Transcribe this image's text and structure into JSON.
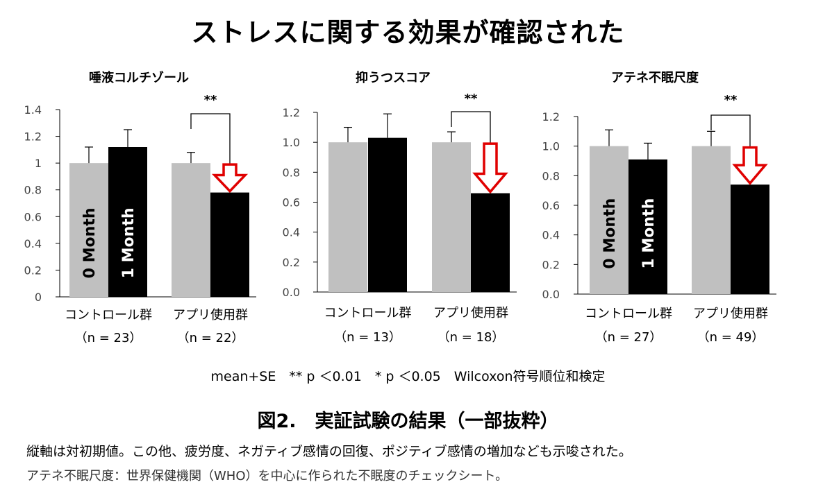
{
  "page": {
    "title": "ストレスに関する効果が確認された",
    "footnote": "mean+SE　** p ＜0.01　* p ＜0.05　Wilcoxon符号順位和検定",
    "figure_caption": "図2.　実証試験の結果（一部抜粋）",
    "description_line1": "縦軸は対初期値。この他、疲労度、ネガティブ感情の回復、ポジティブ感情の増加なども示唆された。",
    "description_line2": "アテネ不眠尺度：世界保健機関（WHO）を中心に作られた不眠度のチェックシート。"
  },
  "colors": {
    "month0": "#c0c0c0",
    "month1": "#000000",
    "arrow": "#e00000"
  },
  "chart_data": [
    {
      "type": "bar",
      "title": "唾液コルチゾール",
      "ylim": [
        0,
        1.4
      ],
      "yticks": [
        "0",
        "0.2",
        "0.4",
        "0.6",
        "0.8",
        "1",
        "1.2",
        "1.4"
      ],
      "groups": [
        {
          "label": "コントロール群",
          "n": "（n = 23）",
          "values": [
            1.0,
            1.12
          ],
          "se": [
            0.12,
            0.13
          ]
        },
        {
          "label": "アプリ使用群",
          "n": "（n = 22）",
          "values": [
            1.0,
            0.78
          ],
          "se": [
            0.08,
            0.09
          ]
        }
      ],
      "series": [
        {
          "name": "0 Month"
        },
        {
          "name": "1 Month"
        }
      ],
      "significance": "**"
    },
    {
      "type": "bar",
      "title": "抑うつスコア",
      "ylim": [
        0,
        1.2
      ],
      "yticks": [
        "0.0",
        "0.2",
        "0.4",
        "0.6",
        "0.8",
        "1.0",
        "1.2"
      ],
      "groups": [
        {
          "label": "コントロール群",
          "n": "（n = 13）",
          "values": [
            1.0,
            1.03
          ],
          "se": [
            0.1,
            0.16
          ]
        },
        {
          "label": "アプリ使用群",
          "n": "（n = 18）",
          "values": [
            1.0,
            0.66
          ],
          "se": [
            0.07,
            0.19
          ]
        }
      ],
      "significance": "**"
    },
    {
      "type": "bar",
      "title": "アテネ不眠尺度",
      "ylim": [
        0,
        1.2
      ],
      "yticks": [
        "0.0",
        "0.2",
        "0.4",
        "0.6",
        "0.8",
        "1.0",
        "1.2"
      ],
      "groups": [
        {
          "label": "コントロール群",
          "n": "（n = 27）",
          "values": [
            1.0,
            0.91
          ],
          "se": [
            0.11,
            0.11
          ]
        },
        {
          "label": "アプリ使用群",
          "n": "（n = 49）",
          "values": [
            1.0,
            0.74
          ],
          "se": [
            0.1,
            0.11
          ]
        }
      ],
      "series": [
        {
          "name": "0 Month"
        },
        {
          "name": "1 Month"
        }
      ],
      "significance": "**"
    }
  ]
}
